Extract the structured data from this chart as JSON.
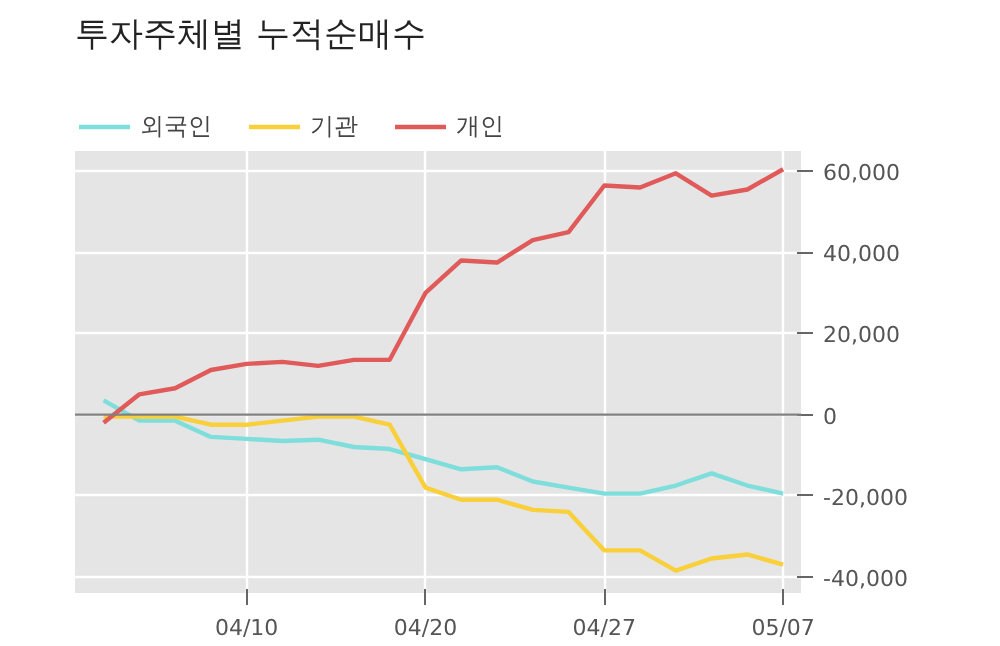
{
  "chart_data": {
    "type": "line",
    "title": "투자주체별 누적순매수",
    "categories": [
      null,
      null,
      null,
      null,
      "04/10",
      null,
      null,
      null,
      null,
      "04/20",
      null,
      null,
      null,
      null,
      "04/27",
      null,
      null,
      null,
      null,
      "05/07"
    ],
    "series": [
      {
        "name": "외국인",
        "color": "#7ddedb",
        "values": [
          3500,
          -1500,
          -1500,
          -5500,
          -6000,
          -6500,
          -6200,
          -8000,
          -8500,
          -11000,
          -13500,
          -13000,
          -16500,
          -18000,
          -19500,
          -19500,
          -17500,
          -14500,
          -17500,
          -19500
        ]
      },
      {
        "name": "기관",
        "color": "#f9cf3a",
        "values": [
          -500,
          -500,
          -500,
          -2500,
          -2500,
          -1500,
          -500,
          -500,
          -2500,
          -18000,
          -21000,
          -21000,
          -23500,
          -24000,
          -33500,
          -33500,
          -38500,
          -35500,
          -34500,
          -37000
        ]
      },
      {
        "name": "개인",
        "color": "#e05a5a",
        "values": [
          -2000,
          5000,
          6500,
          11000,
          12500,
          13000,
          12000,
          13500,
          13500,
          30000,
          38000,
          37500,
          43000,
          45000,
          56500,
          56000,
          59500,
          54000,
          55500,
          60500
        ]
      }
    ],
    "ylim": [
      -44000,
      65000
    ],
    "yticks": [
      {
        "value": -40000,
        "label": "-40,000"
      },
      {
        "value": -20000,
        "label": "-20,000"
      },
      0,
      {
        "value": 20000,
        "label": "20,000"
      },
      {
        "value": 40000,
        "label": "40,000"
      },
      {
        "value": 60000,
        "label": "60,000"
      }
    ],
    "ref_lines": [
      {
        "axis": "y",
        "value": 0,
        "label": null,
        "color": "#808080"
      }
    ],
    "grid": true,
    "legend": "top left",
    "marker": "none",
    "line_style": "solid"
  }
}
